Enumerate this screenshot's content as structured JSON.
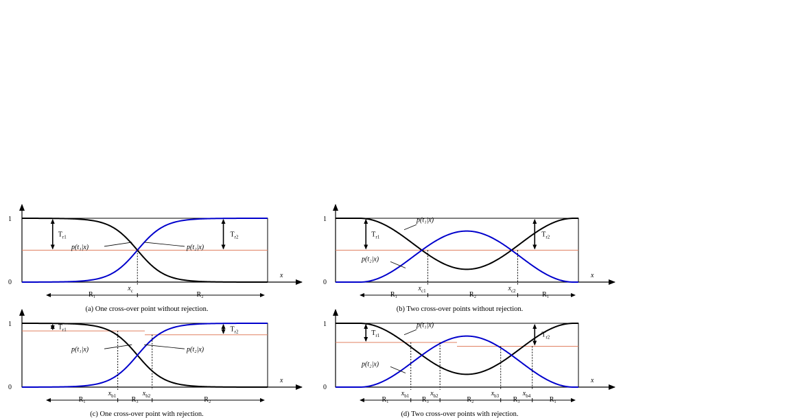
{
  "colors": {
    "class1_curve": "#000000",
    "class2_curve": "#0000cc",
    "threshold_line": "#e08060",
    "axis": "#000000"
  },
  "axis": {
    "x_label": "x",
    "y_top": "1",
    "y_bottom": "0"
  },
  "curves": {
    "p1": "p(t₁|x)",
    "p2": "p(t₂|x)"
  },
  "chart_data": [
    {
      "id": "a",
      "type": "line",
      "caption": "(a) One cross-over point without rejection.",
      "x_range": [
        0,
        1
      ],
      "y_range": [
        0,
        1
      ],
      "thresholds": {
        "left": 0.5,
        "right": 0.5
      },
      "series": [
        {
          "name": "p(t₁|x)",
          "shape": "sigmoid-down",
          "center": 0.47
        },
        {
          "name": "p(t₂|x)",
          "shape": "sigmoid-up",
          "center": 0.47
        }
      ],
      "crossovers": [
        {
          "x": 0.47,
          "label": "x",
          "sub": "c"
        }
      ],
      "regions": [
        "R₁",
        "R₂"
      ],
      "threshold_labels": [
        {
          "main": "T",
          "sub": "r1"
        },
        {
          "main": "T",
          "sub": "r2"
        }
      ]
    },
    {
      "id": "b",
      "type": "line",
      "caption": "(b) Two cross-over points without rejection.",
      "x_range": [
        0,
        1
      ],
      "y_range": [
        0,
        1
      ],
      "thresholds": {
        "left": 0.5,
        "right": 0.5
      },
      "series": [
        {
          "name": "p(t₁|x)",
          "shape": "valley",
          "min": 0.2
        },
        {
          "name": "p(t₂|x)",
          "shape": "peak",
          "max": 0.8
        }
      ],
      "crossovers": [
        {
          "x": 0.38,
          "label": "x",
          "sub": "c1"
        },
        {
          "x": 0.75,
          "label": "x",
          "sub": "c2"
        }
      ],
      "regions": [
        "R₁",
        "R₂",
        "R₁"
      ],
      "threshold_labels": [
        {
          "main": "T",
          "sub": "r1"
        },
        {
          "main": "T",
          "sub": "r2"
        }
      ]
    },
    {
      "id": "c",
      "type": "line",
      "caption": "(c) One cross-over point with rejection.",
      "x_range": [
        0,
        1
      ],
      "y_range": [
        0,
        1
      ],
      "thresholds": {
        "left": 0.88,
        "right": 0.82
      },
      "series": [
        {
          "name": "p(t₁|x)",
          "shape": "sigmoid-down",
          "center": 0.47
        },
        {
          "name": "p(t₂|x)",
          "shape": "sigmoid-up",
          "center": 0.47
        }
      ],
      "crossovers": [
        {
          "x": 0.39,
          "label": "x",
          "sub": "b1"
        },
        {
          "x": 0.53,
          "label": "x",
          "sub": "b2"
        }
      ],
      "regions": [
        "R₁",
        "R₃",
        "R₂"
      ],
      "threshold_labels": [
        {
          "main": "T",
          "sub": "r1"
        },
        {
          "main": "T",
          "sub": "r2"
        }
      ]
    },
    {
      "id": "d",
      "type": "line",
      "caption": "(d) Two cross-over points with rejection.",
      "x_range": [
        0,
        1
      ],
      "y_range": [
        0,
        1
      ],
      "thresholds": {
        "left": 0.7,
        "right": 0.64
      },
      "series": [
        {
          "name": "p(t₁|x)",
          "shape": "valley",
          "min": 0.2
        },
        {
          "name": "p(t₂|x)",
          "shape": "peak",
          "max": 0.8
        }
      ],
      "crossovers": [
        {
          "x": 0.31,
          "label": "x",
          "sub": "b1"
        },
        {
          "x": 0.43,
          "label": "x",
          "sub": "b2"
        },
        {
          "x": 0.68,
          "label": "x",
          "sub": "b3"
        },
        {
          "x": 0.81,
          "label": "x",
          "sub": "b4"
        }
      ],
      "regions": [
        "R₁",
        "R₃",
        "R₂",
        "R₃",
        "R₁"
      ],
      "threshold_labels": [
        {
          "main": "T",
          "sub": "r1"
        },
        {
          "main": "T",
          "sub": "r2"
        }
      ]
    }
  ]
}
